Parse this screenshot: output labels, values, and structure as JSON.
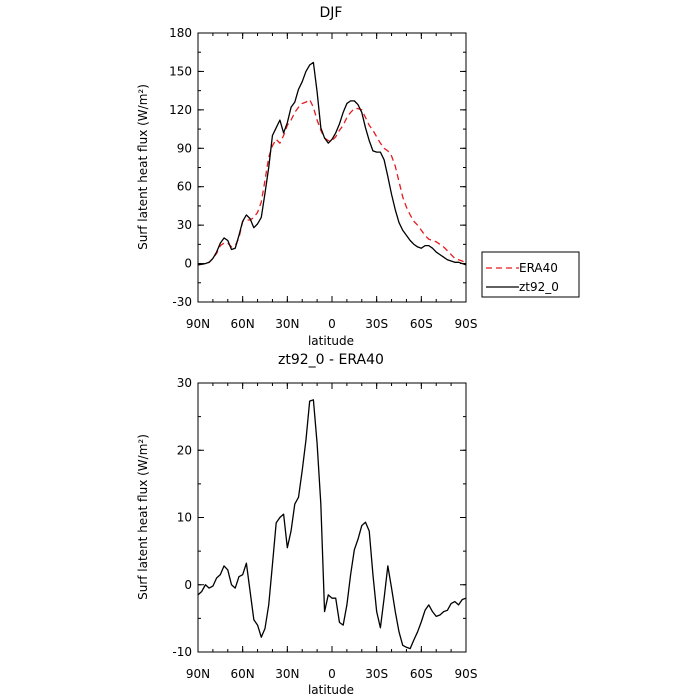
{
  "chart_data": [
    {
      "type": "line",
      "title": "DJF",
      "xlabel": "latitude",
      "ylabel": "Surf latent heat flux (W/m²)",
      "ylim": [
        -30,
        180
      ],
      "yticks": [
        -30,
        0,
        30,
        60,
        90,
        120,
        150,
        180
      ],
      "xlim": [
        90,
        -90
      ],
      "xticks": [
        90,
        60,
        30,
        0,
        -30,
        -60,
        -90
      ],
      "xticklabels": [
        "90N",
        "60N",
        "30N",
        "0",
        "30S",
        "60S",
        "90S"
      ],
      "legend_position": "right",
      "x": [
        90,
        87.5,
        85,
        82.5,
        80,
        77.5,
        75,
        72.5,
        70,
        67.5,
        65,
        62.5,
        60,
        57.5,
        55,
        52.5,
        50,
        47.5,
        45,
        42.5,
        40,
        37.5,
        35,
        32.5,
        30,
        27.5,
        25,
        22.5,
        20,
        17.5,
        15,
        12.5,
        10,
        7.5,
        5,
        2.5,
        0,
        -2.5,
        -5,
        -7.5,
        -10,
        -12.5,
        -15,
        -17.5,
        -20,
        -22.5,
        -25,
        -27.5,
        -30,
        -32.5,
        -35,
        -37.5,
        -40,
        -42.5,
        -45,
        -47.5,
        -50,
        -52.5,
        -55,
        -57.5,
        -60,
        -62.5,
        -65,
        -67.5,
        -70,
        -72.5,
        -75,
        -77.5,
        -80,
        -82.5,
        -85,
        -87.5,
        -90
      ],
      "series": [
        {
          "name": "ERA40",
          "color": "#e8191c",
          "dash": true,
          "values": [
            -1,
            -0.5,
            0,
            1,
            4,
            8,
            14,
            16,
            16,
            13,
            14,
            20,
            33,
            34,
            34,
            36,
            40,
            48,
            65,
            83,
            92,
            97,
            94,
            100,
            108,
            112,
            118,
            122,
            125,
            126,
            128,
            122,
            112,
            104,
            98,
            96,
            96,
            99,
            104,
            108,
            114,
            118,
            121,
            121,
            120,
            114,
            108,
            104,
            99,
            94,
            90,
            88,
            84,
            76,
            64,
            52,
            44,
            38,
            33,
            30,
            26,
            22,
            19,
            18,
            17,
            15,
            13,
            10,
            7,
            4,
            3,
            2,
            0
          ]
        },
        {
          "name": "zt92_0",
          "color": "#000000",
          "dash": false,
          "values": [
            -1,
            -0.5,
            0,
            1,
            4,
            9,
            16,
            20,
            18,
            11,
            12,
            22,
            33,
            38,
            35,
            28,
            31,
            36,
            55,
            75,
            100,
            106,
            112,
            102,
            110,
            122,
            126,
            136,
            142,
            150,
            155,
            157,
            134,
            106,
            98,
            94,
            97,
            102,
            109,
            118,
            125,
            127,
            127,
            124,
            118,
            106,
            96,
            88,
            87,
            87,
            81,
            68,
            54,
            42,
            32,
            26,
            22,
            18,
            15,
            13,
            12,
            14,
            14,
            12,
            9,
            7,
            5,
            3,
            2,
            1,
            1,
            0,
            -1
          ]
        }
      ]
    },
    {
      "type": "line",
      "title": "zt92_0 - ERA40",
      "xlabel": "latitude",
      "ylabel": "Surf latent heat flux (W/m²)",
      "ylim": [
        -10,
        30
      ],
      "yticks": [
        -10,
        0,
        10,
        20,
        30
      ],
      "xlim": [
        90,
        -90
      ],
      "xticks": [
        90,
        60,
        30,
        0,
        -30,
        -60,
        -90
      ],
      "xticklabels": [
        "90N",
        "60N",
        "30N",
        "0",
        "30S",
        "60S",
        "90S"
      ],
      "x": [
        90,
        87.5,
        85,
        82.5,
        80,
        77.5,
        75,
        72.5,
        70,
        67.5,
        65,
        62.5,
        60,
        57.5,
        55,
        52.5,
        50,
        47.5,
        45,
        42.5,
        40,
        37.5,
        35,
        32.5,
        30,
        27.5,
        25,
        22.5,
        20,
        17.5,
        15,
        12.5,
        10,
        7.5,
        5,
        2.5,
        0,
        -2.5,
        -5,
        -7.5,
        -10,
        -12.5,
        -15,
        -17.5,
        -20,
        -22.5,
        -25,
        -27.5,
        -30,
        -32.5,
        -35,
        -37.5,
        -40,
        -42.5,
        -45,
        -47.5,
        -50,
        -52.5,
        -55,
        -57.5,
        -60,
        -62.5,
        -65,
        -67.5,
        -70,
        -72.5,
        -75,
        -77.5,
        -80,
        -82.5,
        -85,
        -87.5,
        -90
      ],
      "series": [
        {
          "name": "",
          "color": "#000000",
          "dash": false,
          "values": [
            -1.5,
            -1,
            0,
            -0.5,
            -0.2,
            1,
            1.5,
            2.8,
            2.2,
            0,
            -0.5,
            1.2,
            1.5,
            3.2,
            -1,
            -5.2,
            -6,
            -7.8,
            -6.5,
            -3,
            3,
            9.2,
            10,
            10.5,
            5.5,
            8,
            12,
            13,
            17,
            21.5,
            27.3,
            27.5,
            21,
            12,
            -4,
            -1.5,
            -2,
            -2,
            -5.6,
            -6,
            -3,
            1.5,
            5.2,
            6.8,
            8.8,
            9.3,
            8,
            1.5,
            -4,
            -6.4,
            -2,
            2.8,
            -0.5,
            -4,
            -7,
            -9,
            -9.3,
            -9.5,
            -8.2,
            -7,
            -5.5,
            -3.8,
            -3,
            -4,
            -4.7,
            -4.5,
            -4,
            -3.8,
            -2.8,
            -2.5,
            -3,
            -2.2,
            -2
          ]
        }
      ]
    }
  ]
}
